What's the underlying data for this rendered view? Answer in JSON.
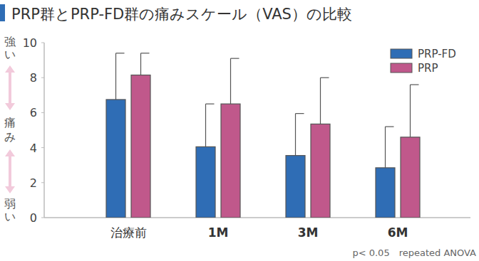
{
  "chart_data": {
    "type": "bar",
    "title": "PRP群とPRP-FD群の痛みスケール（VAS）の比較",
    "y_label": "痛み",
    "annotations": [
      "強い",
      "弱い"
    ],
    "footnote": "p< 0.05　repeated ANOVA",
    "categories": [
      "治療前",
      "1M",
      "3M",
      "6M"
    ],
    "series": [
      {
        "name": "PRP-FD",
        "color": "#2f6db5",
        "values": [
          6.75,
          4.05,
          3.55,
          2.85
        ],
        "errors": [
          2.65,
          2.45,
          2.4,
          2.35
        ]
      },
      {
        "name": "PRP",
        "color": "#c0588b",
        "values": [
          8.15,
          6.5,
          5.35,
          4.6
        ],
        "errors": [
          1.25,
          2.6,
          2.65,
          3.0
        ]
      }
    ],
    "ylim": [
      0,
      10
    ],
    "yticks": [
      0,
      2,
      4,
      6,
      8,
      10
    ],
    "grid": false,
    "legend": "upper right"
  }
}
